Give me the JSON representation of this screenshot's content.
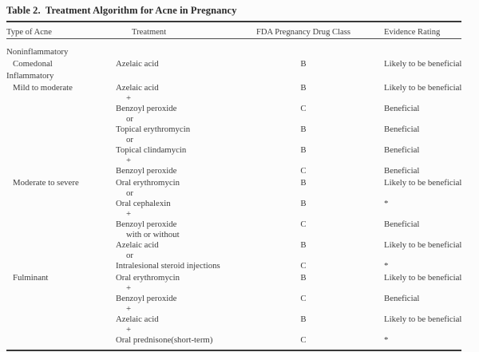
{
  "table": {
    "title": "Table 2.  Treatment Algorithm for Acne in Pregnancy",
    "columns": [
      "Type of Acne",
      "Treatment",
      "FDA Pregnancy Drug Class",
      "Evidence Rating"
    ],
    "rows": [
      {
        "acne": "Noninflammatory",
        "indent": false,
        "treatment": "",
        "connector": "",
        "drug_class": "",
        "evidence": ""
      },
      {
        "acne": "Comedonal",
        "indent": true,
        "treatment": "Azelaic acid",
        "connector": "",
        "drug_class": "B",
        "evidence": "Likely to be beneficial"
      },
      {
        "acne": "Inflammatory",
        "indent": false,
        "treatment": "",
        "connector": "",
        "drug_class": "",
        "evidence": ""
      },
      {
        "acne": "Mild to moderate",
        "indent": true,
        "treatment": "Azelaic acid",
        "connector": "+",
        "drug_class": "B",
        "evidence": "Likely to be beneficial"
      },
      {
        "acne": "",
        "indent": false,
        "treatment": "Benzoyl peroxide",
        "connector": "or",
        "drug_class": "C",
        "evidence": "Beneficial"
      },
      {
        "acne": "",
        "indent": false,
        "treatment": "Topical erythromycin",
        "connector": "or",
        "drug_class": "B",
        "evidence": "Beneficial"
      },
      {
        "acne": "",
        "indent": false,
        "treatment": "Topical clindamycin",
        "connector": "+",
        "drug_class": "B",
        "evidence": "Beneficial"
      },
      {
        "acne": "",
        "indent": false,
        "treatment": "Benzoyl peroxide",
        "connector": "",
        "drug_class": "C",
        "evidence": "Beneficial"
      },
      {
        "acne": "Moderate to severe",
        "indent": true,
        "treatment": "Oral erythromycin",
        "connector": "or",
        "drug_class": "B",
        "evidence": "Likely to be beneficial"
      },
      {
        "acne": "",
        "indent": false,
        "treatment": "Oral cephalexin",
        "connector": "+",
        "drug_class": "B",
        "evidence": "*"
      },
      {
        "acne": "",
        "indent": false,
        "treatment": "Benzoyl peroxide",
        "connector": "with or without",
        "drug_class": "C",
        "evidence": "Beneficial"
      },
      {
        "acne": "",
        "indent": false,
        "treatment": "Azelaic acid",
        "connector": "or",
        "drug_class": "B",
        "evidence": "Likely to be beneficial"
      },
      {
        "acne": "",
        "indent": false,
        "treatment": "Intralesional steroid injections",
        "connector": "",
        "drug_class": "C",
        "evidence": "*"
      },
      {
        "acne": "Fulminant",
        "indent": true,
        "treatment": "Oral erythromycin",
        "connector": "+",
        "drug_class": "B",
        "evidence": "Likely to be beneficial"
      },
      {
        "acne": "",
        "indent": false,
        "treatment": "Benzoyl peroxide",
        "connector": "+",
        "drug_class": "C",
        "evidence": "Beneficial"
      },
      {
        "acne": "",
        "indent": false,
        "treatment": "Azelaic acid",
        "connector": "+",
        "drug_class": "B",
        "evidence": "Likely to be beneficial"
      },
      {
        "acne": "",
        "indent": false,
        "treatment": "Oral prednisone(short-term)",
        "connector": "",
        "drug_class": "C",
        "evidence": "*"
      }
    ]
  }
}
